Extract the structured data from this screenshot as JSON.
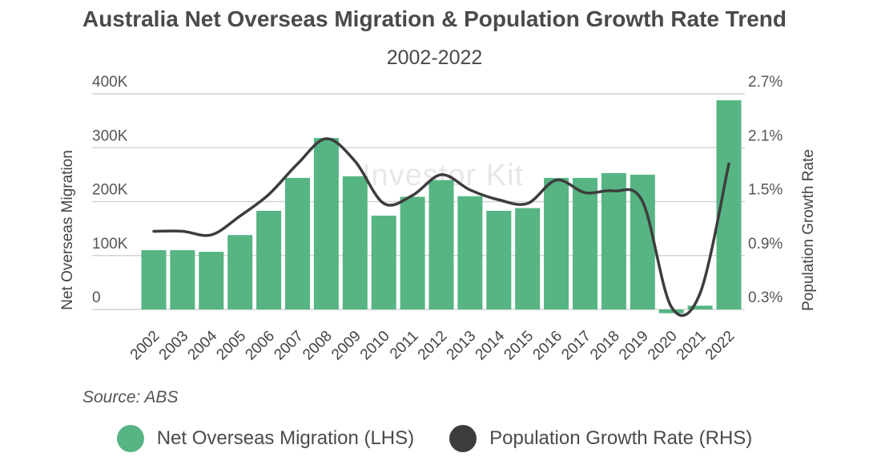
{
  "chart_data": {
    "type": "bar+line",
    "title": "Australia Net Overseas Migration & Population Growth Rate Trend",
    "subtitle": "2002-2022",
    "categories": [
      "2002",
      "2003",
      "2004",
      "2005",
      "2006",
      "2007",
      "2008",
      "2009",
      "2010",
      "2011",
      "2012",
      "2013",
      "2014",
      "2015",
      "2016",
      "2017",
      "2018",
      "2019",
      "2020",
      "2021",
      "2022"
    ],
    "series": [
      {
        "name": "Net Overseas Migration (LHS)",
        "type": "bar",
        "axis": "left",
        "color": "#56b583",
        "values": [
          110000,
          110000,
          107000,
          138000,
          183000,
          244000,
          318000,
          247000,
          174000,
          209000,
          240000,
          210000,
          183000,
          188000,
          244000,
          244000,
          253000,
          250000,
          -7000,
          7000,
          388000
        ]
      },
      {
        "name": "Population Growth Rate (RHS)",
        "type": "line",
        "axis": "right",
        "color": "#3d3d3d",
        "values": [
          1.17,
          1.17,
          1.13,
          1.34,
          1.58,
          1.92,
          2.2,
          1.95,
          1.48,
          1.57,
          1.8,
          1.63,
          1.52,
          1.48,
          1.74,
          1.6,
          1.62,
          1.5,
          0.33,
          0.48,
          1.92
        ]
      }
    ],
    "ylabel_left": "Net Overseas Migration",
    "ylabel_right": "Population Growth Rate",
    "ylim_left": [
      0,
      400000
    ],
    "ylim_right": [
      0.3,
      2.7
    ],
    "yticks_left": [
      "0",
      "100K",
      "200K",
      "300K",
      "400K"
    ],
    "yticks_right": [
      "0.3%",
      "0.9%",
      "1.5%",
      "2.1%",
      "2.7%"
    ],
    "grid": true,
    "legend_position": "bottom"
  },
  "source": "Source: ABS",
  "watermark": "Investor Kit"
}
